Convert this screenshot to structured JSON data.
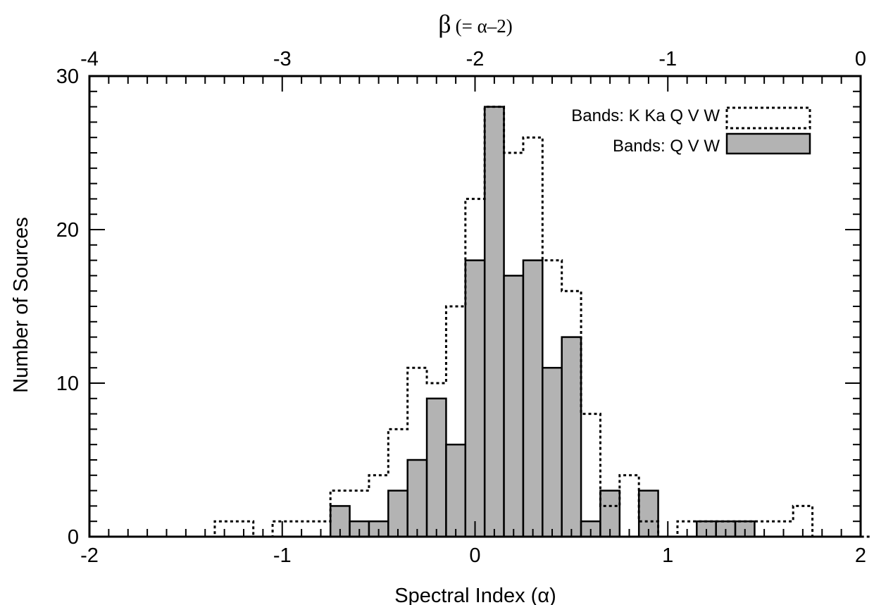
{
  "chart_data": {
    "type": "bar",
    "xlabel": "Spectral Index (α)",
    "ylabel": "Number of Sources",
    "top_axis": {
      "label_main": "β",
      "label_paren": "(= α–2)",
      "ticks": [
        "-4",
        "-3",
        "-2",
        "-1",
        "0"
      ],
      "tick_values": [
        -4,
        -3,
        -2,
        -1,
        0
      ]
    },
    "xlim": [
      -2,
      2
    ],
    "ylim": [
      0,
      30
    ],
    "x_ticks": [
      "-2",
      "-1",
      "0",
      "1",
      "2"
    ],
    "x_tick_values": [
      -2,
      -1,
      0,
      1,
      2
    ],
    "y_ticks": [
      "0",
      "10",
      "20",
      "30"
    ],
    "y_tick_values": [
      0,
      10,
      20,
      30
    ],
    "bin_width": 0.1,
    "bin_edges_start": -1.95,
    "series": [
      {
        "name": "Bands: K Ka Q V W",
        "style": "dotted-outline",
        "color": "#000000",
        "values": [
          0,
          0,
          0,
          0,
          0,
          0,
          1,
          1,
          0,
          1,
          1,
          1,
          3,
          3,
          4,
          7,
          11,
          10,
          15,
          22,
          28,
          25,
          26,
          18,
          16,
          8,
          2,
          4,
          1,
          0,
          1,
          1,
          1,
          1,
          1,
          1,
          2,
          0,
          0,
          0
        ]
      },
      {
        "name": "Bands: Q V W",
        "style": "filled",
        "color": "#b3b3b3",
        "values": [
          0,
          0,
          0,
          0,
          0,
          0,
          0,
          0,
          0,
          0,
          0,
          0,
          2,
          1,
          1,
          3,
          5,
          9,
          6,
          18,
          28,
          17,
          18,
          11,
          13,
          1,
          3,
          0,
          3,
          0,
          0,
          1,
          1,
          1,
          0,
          0,
          0,
          0,
          0,
          0
        ]
      }
    ],
    "legend_position": "top-right",
    "grid": false
  }
}
